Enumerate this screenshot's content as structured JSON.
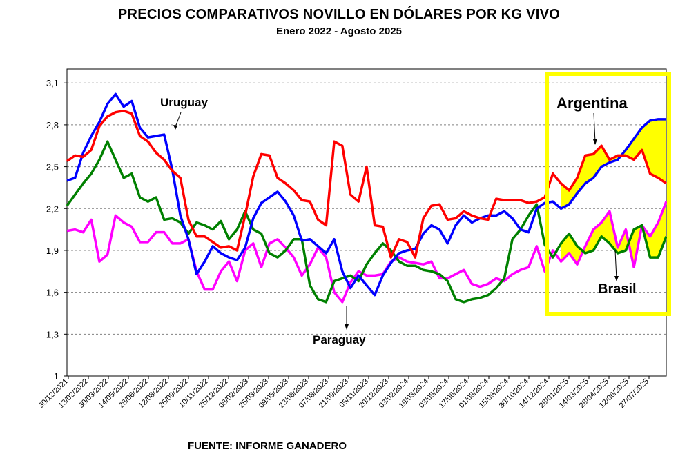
{
  "chart_data": {
    "type": "line",
    "title": "PRECIOS COMPARATIVOS NOVILLO EN DÓLARES POR KG  VIVO",
    "subtitle": "Enero  2022 -  Agosto 2025",
    "source": "FUENTE: INFORME GANADERO",
    "ylim": [
      1,
      3.2
    ],
    "yticks": [
      "1",
      "1,3",
      "1,6",
      "1,9",
      "2,2",
      "2,5",
      "2,8",
      "3,1"
    ],
    "grid": "horizontal dashed",
    "x_tick_labels": [
      "30/12/2021",
      "13/02/2022",
      "30/03/2022",
      "14/05/2022",
      "28/06/2022",
      "12/08/2022",
      "26/09/2022",
      "10/11/2022",
      "25/12/2022",
      "08/02/2023",
      "25/03/2023",
      "09/05/2023",
      "23/06/2023",
      "07/08/2023",
      "21/09/2023",
      "05/11/2023",
      "20/12/2023",
      "03/02/2024",
      "19/03/2024",
      "03/05/2024",
      "17/06/2024",
      "01/08/2024",
      "15/09/2024",
      "30/10/2024",
      "14/12/2024",
      "28/01/2025",
      "14/03/2025",
      "28/04/2025",
      "12/06/2025",
      "27/07/2025"
    ],
    "series": [
      {
        "name": "Argentina",
        "color": "#ff0000",
        "values": [
          2.54,
          2.58,
          2.57,
          2.62,
          2.79,
          2.86,
          2.89,
          2.9,
          2.88,
          2.72,
          2.68,
          2.6,
          2.55,
          2.47,
          2.42,
          2.12,
          2.0,
          2.0,
          1.96,
          1.92,
          1.93,
          1.9,
          2.15,
          2.43,
          2.59,
          2.58,
          2.42,
          2.38,
          2.33,
          2.26,
          2.25,
          2.12,
          2.08,
          2.68,
          2.65,
          2.3,
          2.25,
          2.5,
          2.08,
          2.07,
          1.85,
          1.98,
          1.96,
          1.85,
          2.13,
          2.22,
          2.23,
          2.12,
          2.13,
          2.18,
          2.15,
          2.13,
          2.12,
          2.27,
          2.26,
          2.26,
          2.26,
          2.24,
          2.25,
          2.28,
          2.45,
          2.38,
          2.33,
          2.42,
          2.58,
          2.59,
          2.65,
          2.55,
          2.58,
          2.58,
          2.55,
          2.62,
          2.45,
          2.42,
          2.38
        ]
      },
      {
        "name": "Uruguay",
        "color": "#0000ff",
        "values": [
          2.4,
          2.42,
          2.6,
          2.72,
          2.82,
          2.95,
          3.02,
          2.93,
          2.97,
          2.78,
          2.71,
          2.72,
          2.73,
          2.48,
          2.15,
          1.98,
          1.73,
          1.82,
          1.93,
          1.88,
          1.85,
          1.83,
          1.92,
          2.13,
          2.24,
          2.28,
          2.32,
          2.25,
          2.15,
          1.97,
          1.98,
          1.93,
          1.88,
          1.98,
          1.75,
          1.63,
          1.72,
          1.65,
          1.58,
          1.72,
          1.81,
          1.88,
          1.9,
          1.91,
          2.02,
          2.08,
          2.05,
          1.95,
          2.08,
          2.15,
          2.1,
          2.13,
          2.15,
          2.15,
          2.18,
          2.13,
          2.05,
          2.03,
          2.2,
          2.24,
          2.25,
          2.2,
          2.23,
          2.31,
          2.38,
          2.42,
          2.5,
          2.53,
          2.55,
          2.62,
          2.7,
          2.78,
          2.83,
          2.84,
          2.84
        ]
      },
      {
        "name": "Paraguay",
        "color": "#ff00ff",
        "values": [
          2.04,
          2.05,
          2.03,
          2.12,
          1.82,
          1.87,
          2.15,
          2.1,
          2.07,
          1.96,
          1.96,
          2.03,
          2.03,
          1.95,
          1.95,
          1.98,
          1.75,
          1.62,
          1.62,
          1.75,
          1.82,
          1.68,
          1.9,
          1.95,
          1.78,
          1.95,
          1.98,
          1.92,
          1.85,
          1.72,
          1.8,
          1.92,
          1.85,
          1.6,
          1.53,
          1.67,
          1.75,
          1.72,
          1.72,
          1.73,
          1.82,
          1.85,
          1.82,
          1.81,
          1.8,
          1.82,
          1.7,
          1.7,
          1.73,
          1.76,
          1.66,
          1.64,
          1.66,
          1.7,
          1.68,
          1.73,
          1.76,
          1.78,
          1.93,
          1.75,
          1.9,
          1.82,
          1.88,
          1.8,
          1.93,
          2.05,
          2.1,
          2.18,
          1.92,
          2.05,
          1.78,
          2.08,
          2.0,
          2.1,
          2.25
        ]
      },
      {
        "name": "Brasil",
        "color": "#008000",
        "values": [
          2.22,
          2.3,
          2.38,
          2.45,
          2.55,
          2.68,
          2.55,
          2.42,
          2.45,
          2.28,
          2.25,
          2.28,
          2.12,
          2.13,
          2.1,
          2.02,
          2.1,
          2.08,
          2.05,
          2.11,
          1.98,
          2.05,
          2.18,
          2.05,
          2.02,
          1.88,
          1.85,
          1.9,
          1.98,
          1.98,
          1.65,
          1.55,
          1.53,
          1.68,
          1.7,
          1.72,
          1.68,
          1.8,
          1.88,
          1.95,
          1.9,
          1.82,
          1.79,
          1.79,
          1.76,
          1.75,
          1.73,
          1.68,
          1.55,
          1.53,
          1.55,
          1.56,
          1.58,
          1.63,
          1.7,
          1.98,
          2.05,
          2.15,
          2.23,
          1.94,
          1.85,
          1.95,
          2.02,
          1.93,
          1.88,
          1.9,
          2.0,
          1.95,
          1.88,
          1.9,
          2.05,
          2.08,
          1.85,
          1.85,
          2.0
        ]
      }
    ],
    "annotations": {
      "uruguay": "Uruguay",
      "paraguay": "Paraguay",
      "argentina": "Argentina",
      "brasil": "Brasil"
    },
    "highlight_fill": "#ffff00",
    "highlight_border": "#ffff00",
    "grid_color": "#808080"
  }
}
